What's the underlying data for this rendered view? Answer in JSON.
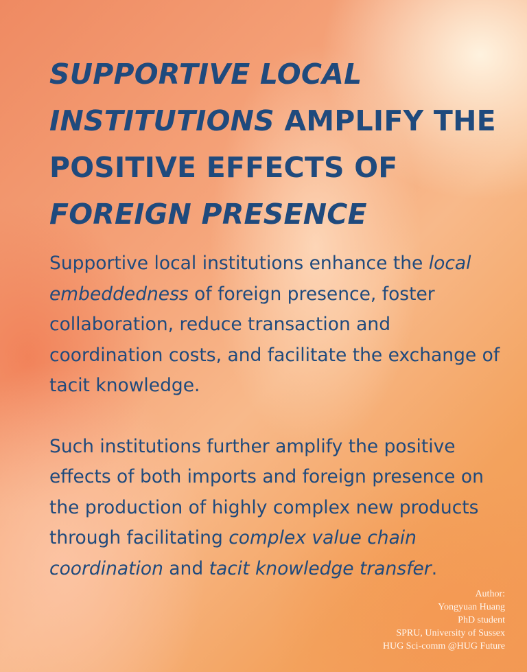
{
  "title": {
    "part1": "SUPPORTIVE LOCAL INSTITUTIONS",
    "part2": " AMPLIFY THE POSITIVE EFFECTS OF ",
    "part3": "FOREIGN PRESENCE"
  },
  "paragraph1": {
    "text1": "Supportive local institutions enhance the ",
    "em1": "local embeddedness",
    "text2": " of foreign presence, foster collaboration, reduce transaction and coordination costs, and facilitate the exchange of tacit knowledge."
  },
  "paragraph2": {
    "text1": "Such institutions further amplify the positive effects of both imports and foreign presence on the production of highly complex new products through facilitating ",
    "em1": "complex value chain coordination",
    "text2": " and ",
    "em2": "tacit knowledge transfer",
    "text3": "."
  },
  "author": {
    "label": "Author:",
    "name": "Yongyuan Huang",
    "role": "PhD student",
    "affiliation": "SPRU, University of Sussex",
    "credit": "HUG Sci-comm  @HUG Future"
  },
  "colors": {
    "heading_text": "#1f4a7d",
    "author_text": "#fff6ee",
    "background_primary": "#ef8a62",
    "background_highlight": "#fff6e4"
  }
}
